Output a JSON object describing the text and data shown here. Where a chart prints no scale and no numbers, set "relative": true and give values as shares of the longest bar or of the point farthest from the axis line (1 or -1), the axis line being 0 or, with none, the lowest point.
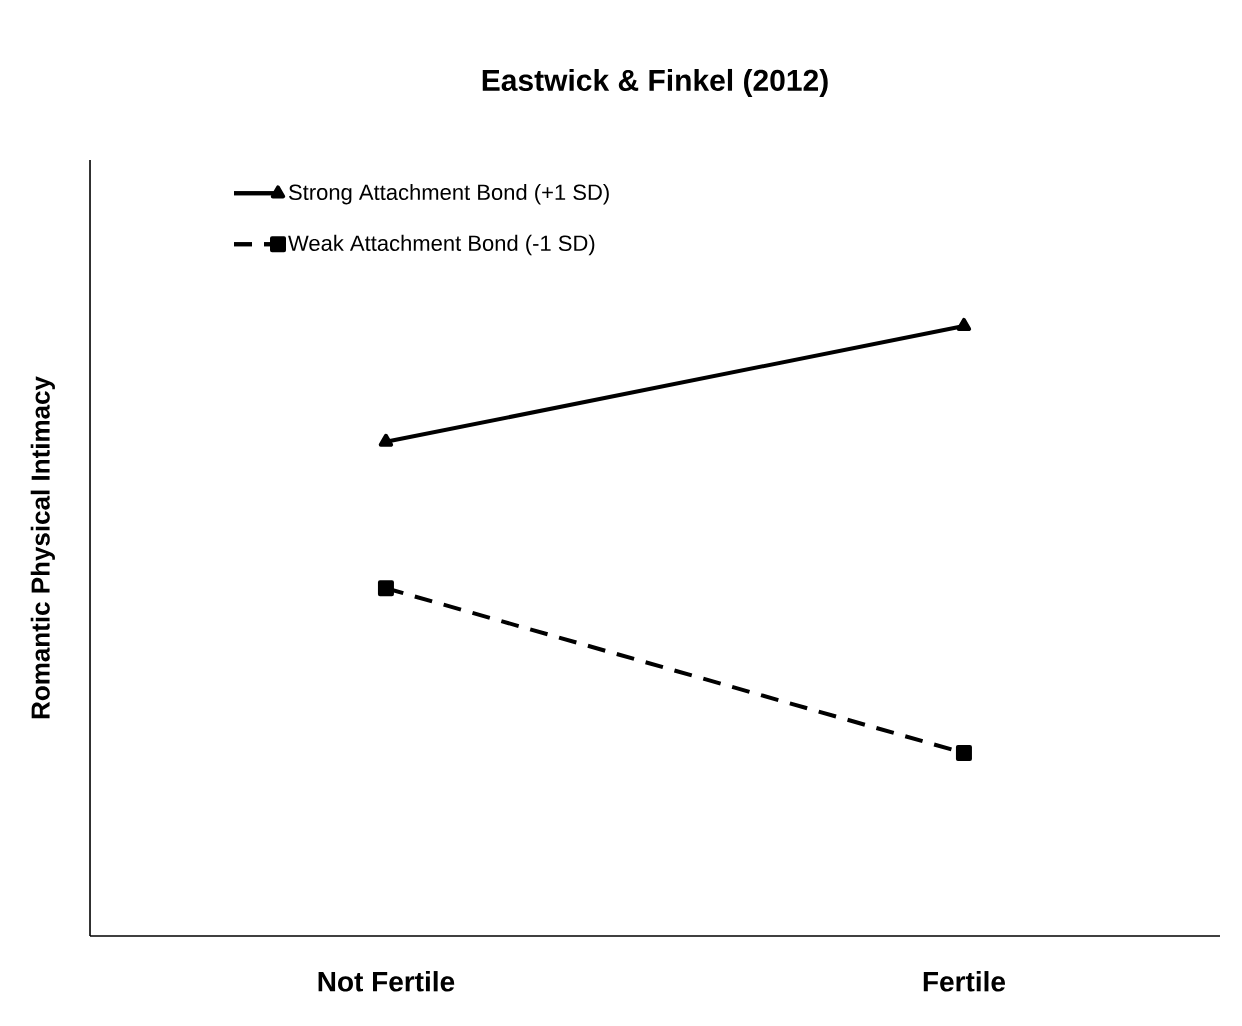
{
  "chart_data": {
    "type": "line",
    "title": "Eastwick & Finkel (2012)",
    "ylabel": "Romantic Physical Intimacy",
    "categories": [
      "Not Fertile",
      "Fertile"
    ],
    "relative": true,
    "legend": "top left",
    "series": [
      {
        "name": "Strong Attachment Bond (+1 SD)",
        "color": "#000000",
        "values": [
          0.81,
          1.0
        ],
        "marker": "triangle",
        "line_style": "solid"
      },
      {
        "name": "Weak Attachment Bond (-1 SD)",
        "color": "#000000",
        "values": [
          0.57,
          0.3
        ],
        "marker": "square",
        "line_style": "dashed"
      }
    ]
  }
}
